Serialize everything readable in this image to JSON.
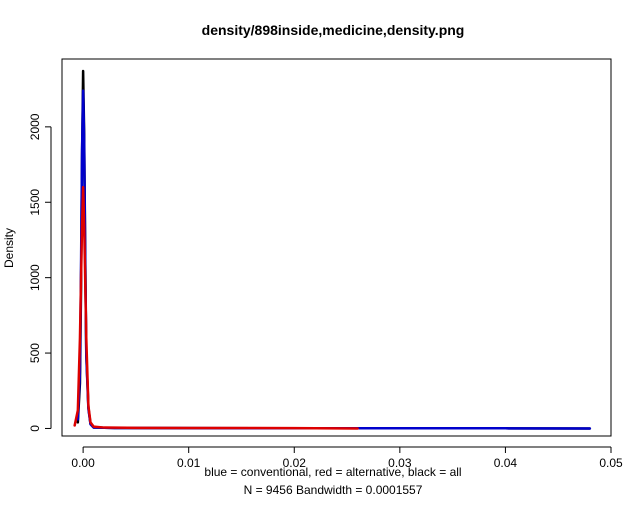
{
  "chart_data": {
    "type": "line",
    "title": "density/898inside,medicine,density.png",
    "xlabel_line1": "blue = conventional, red = alternative, black = all",
    "xlabel_line2": "N = 9456   Bandwidth = 0.0001557",
    "ylabel": "Density",
    "xlim": [
      -0.002,
      0.05
    ],
    "ylim": [
      -50,
      2450
    ],
    "x_ticks": [
      0.0,
      0.01,
      0.02,
      0.03,
      0.04,
      0.05
    ],
    "x_tick_labels": [
      "0.00",
      "0.01",
      "0.02",
      "0.03",
      "0.04",
      "0.05"
    ],
    "y_ticks": [
      0,
      500,
      1000,
      1500,
      2000
    ],
    "y_tick_labels": [
      "0",
      "500",
      "1000",
      "1500",
      "2000"
    ],
    "series": [
      {
        "name": "all",
        "color": "#000000",
        "x": [
          -0.0005,
          -0.0003,
          -0.0002,
          -0.0001,
          0.0,
          0.0001,
          0.0002,
          0.0003,
          0.0005,
          0.0007,
          0.001,
          0.003,
          0.01,
          0.02,
          0.03,
          0.04,
          0.048
        ],
        "y": [
          40,
          300,
          900,
          1800,
          2370,
          1950,
          1150,
          500,
          140,
          30,
          6,
          3,
          2,
          1,
          1,
          1,
          0
        ]
      },
      {
        "name": "conventional",
        "color": "#0000cc",
        "x": [
          -0.0005,
          -0.0003,
          -0.0002,
          -0.0001,
          0.0,
          0.0001,
          0.0002,
          0.0003,
          0.0005,
          0.0007,
          0.001,
          0.003,
          0.01,
          0.02,
          0.03,
          0.04,
          0.048
        ],
        "y": [
          60,
          380,
          1050,
          1850,
          2240,
          1900,
          1100,
          480,
          130,
          28,
          6,
          3,
          2,
          1,
          1,
          1,
          0
        ]
      },
      {
        "name": "alternative",
        "color": "#dd0000",
        "x": [
          -0.0008,
          -0.0005,
          -0.0003,
          -0.0001,
          0.0,
          0.0001,
          0.0003,
          0.0005,
          0.0007,
          0.001,
          0.002,
          0.005,
          0.01,
          0.015,
          0.02,
          0.026
        ],
        "y": [
          20,
          120,
          600,
          1350,
          1600,
          1350,
          600,
          150,
          40,
          12,
          6,
          4,
          3,
          3,
          2,
          0
        ]
      }
    ]
  }
}
